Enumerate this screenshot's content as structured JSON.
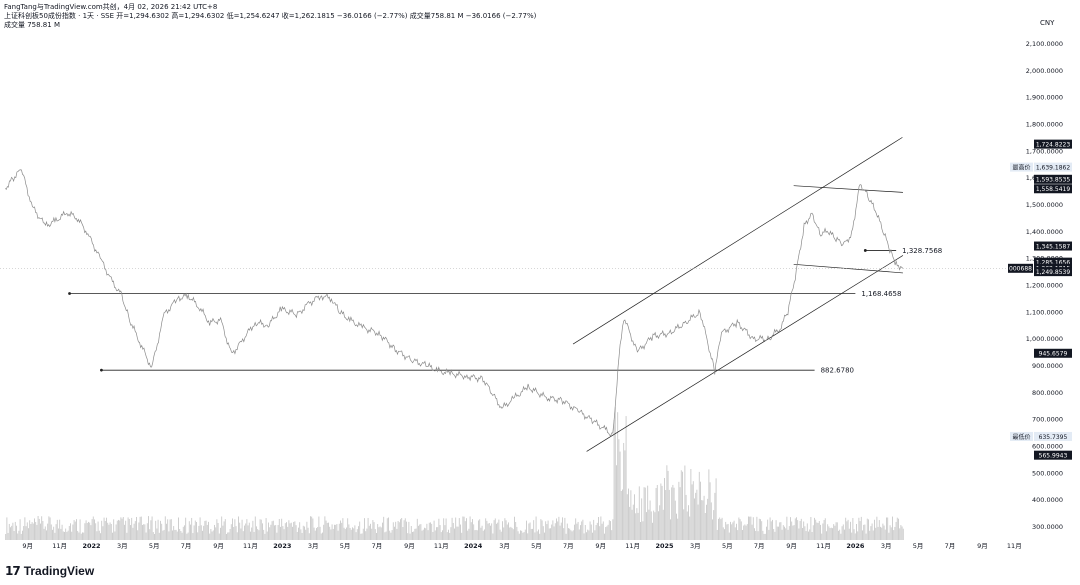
{
  "header": {
    "attribution": "FangTang与TradingView.com共创，4月 02, 2026 21:42 UTC+8",
    "symbol_line": "上证科创板50成份指数 · 1天 · SSE  开=1,294.6302  高=1,294.6302  低=1,254.6247  收=1,262.1815  −36.0166 (−2.77%)  成交量758.81 M  −36.0166 (−2.77%)",
    "volume_line": "成交量  758.81 M"
  },
  "currency": "CNY",
  "brand": {
    "mark": "17",
    "name": "TradingView"
  },
  "colors": {
    "price_line": "#8a8a8a",
    "volume": "#c9c9c9",
    "trendline": "#222222",
    "label_bg": "#131722",
    "hi_lo_bg": "#e3ebf5",
    "axis_text": "#131722"
  },
  "chart_data": {
    "type": "line",
    "title": "上证科创板50成份指数",
    "ylim": [
      250,
      2150
    ],
    "y_axis_ticks": [
      {
        "label": "2,100.0000",
        "value": 2100
      },
      {
        "label": "2,000.0000",
        "value": 2000
      },
      {
        "label": "1,900.0000",
        "value": 1900
      },
      {
        "label": "1,800.0000",
        "value": 1800
      },
      {
        "label": "1,700.0000",
        "value": 1700
      },
      {
        "label": "1,600.0000",
        "value": 1600
      },
      {
        "label": "1,500.0000",
        "value": 1500
      },
      {
        "label": "1,400.0000",
        "value": 1400
      },
      {
        "label": "1,300.0000",
        "value": 1300
      },
      {
        "label": "1,200.0000",
        "value": 1200
      },
      {
        "label": "1,100.0000",
        "value": 1100
      },
      {
        "label": "1,000.0000",
        "value": 1000
      },
      {
        "label": "900.0000",
        "value": 900
      },
      {
        "label": "800.0000",
        "value": 800
      },
      {
        "label": "700.0000",
        "value": 700
      },
      {
        "label": "600.0000",
        "value": 600
      },
      {
        "label": "500.0000",
        "value": 500
      },
      {
        "label": "400.0000",
        "value": 400
      },
      {
        "label": "300.0000",
        "value": 300
      }
    ],
    "x_axis_ticks": [
      {
        "label": "9月",
        "x": "2021-09-01"
      },
      {
        "label": "11月",
        "x": "2021-11-01"
      },
      {
        "label": "2022",
        "x": "2022-01-01"
      },
      {
        "label": "3月",
        "x": "2022-03-01"
      },
      {
        "label": "5月",
        "x": "2022-05-01"
      },
      {
        "label": "7月",
        "x": "2022-07-01"
      },
      {
        "label": "9月",
        "x": "2022-09-01"
      },
      {
        "label": "11月",
        "x": "2022-11-01"
      },
      {
        "label": "2023",
        "x": "2023-01-01"
      },
      {
        "label": "3月",
        "x": "2023-03-01"
      },
      {
        "label": "5月",
        "x": "2023-05-01"
      },
      {
        "label": "7月",
        "x": "2023-07-01"
      },
      {
        "label": "9月",
        "x": "2023-09-01"
      },
      {
        "label": "11月",
        "x": "2023-11-01"
      },
      {
        "label": "2024",
        "x": "2024-01-01"
      },
      {
        "label": "3月",
        "x": "2024-03-01"
      },
      {
        "label": "5月",
        "x": "2024-05-01"
      },
      {
        "label": "7月",
        "x": "2024-07-01"
      },
      {
        "label": "9月",
        "x": "2024-09-01"
      },
      {
        "label": "11月",
        "x": "2024-11-01"
      },
      {
        "label": "2025",
        "x": "2025-01-01"
      },
      {
        "label": "3月",
        "x": "2025-03-01"
      },
      {
        "label": "5月",
        "x": "2025-05-01"
      },
      {
        "label": "7月",
        "x": "2025-07-01"
      },
      {
        "label": "9月",
        "x": "2025-09-01"
      },
      {
        "label": "11月",
        "x": "2025-11-01"
      },
      {
        "label": "2026",
        "x": "2026-01-01"
      },
      {
        "label": "3月",
        "x": "2026-03-01"
      },
      {
        "label": "5月",
        "x": "2026-05-01"
      },
      {
        "label": "7月",
        "x": "2026-07-01"
      },
      {
        "label": "9月",
        "x": "2026-09-01"
      },
      {
        "label": "11月",
        "x": "2026-11-01"
      }
    ],
    "price_series": {
      "name": "",
      "x": [
        "2021-07-20",
        "2021-08-05",
        "2021-08-20",
        "2021-09-10",
        "2021-10-05",
        "2021-10-25",
        "2021-11-15",
        "2021-12-05",
        "2021-12-25",
        "2022-01-20",
        "2022-02-10",
        "2022-02-28",
        "2022-03-15",
        "2022-04-05",
        "2022-04-26",
        "2022-05-20",
        "2022-06-15",
        "2022-07-05",
        "2022-07-25",
        "2022-08-15",
        "2022-09-05",
        "2022-09-26",
        "2022-10-15",
        "2022-11-10",
        "2022-12-05",
        "2022-12-30",
        "2023-01-30",
        "2023-02-20",
        "2023-03-15",
        "2023-04-05",
        "2023-04-20",
        "2023-05-10",
        "2023-06-05",
        "2023-07-05",
        "2023-08-05",
        "2023-09-05",
        "2023-10-05",
        "2023-10-25",
        "2023-11-20",
        "2023-12-20",
        "2024-01-20",
        "2024-02-05",
        "2024-02-25",
        "2024-03-20",
        "2024-04-15",
        "2024-05-20",
        "2024-06-20",
        "2024-07-20",
        "2024-08-20",
        "2024-09-10",
        "2024-09-24",
        "2024-10-08",
        "2024-10-15",
        "2024-11-10",
        "2024-12-10",
        "2025-01-10",
        "2025-02-10",
        "2025-03-10",
        "2025-04-07",
        "2025-04-20",
        "2025-05-20",
        "2025-06-20",
        "2025-07-20",
        "2025-08-10",
        "2025-08-25",
        "2025-09-10",
        "2025-09-25",
        "2025-10-10",
        "2025-10-25",
        "2025-11-10",
        "2025-11-25",
        "2025-12-10",
        "2025-12-25",
        "2026-01-10",
        "2026-01-25",
        "2026-02-10",
        "2026-02-25",
        "2026-03-10",
        "2026-03-20",
        "2026-04-02"
      ],
      "y": [
        1560,
        1600,
        1630,
        1490,
        1420,
        1440,
        1470,
        1450,
        1390,
        1290,
        1210,
        1160,
        1070,
        980,
        890,
        1090,
        1150,
        1160,
        1120,
        1060,
        1070,
        940,
        990,
        1060,
        1050,
        1110,
        1090,
        1130,
        1160,
        1150,
        1100,
        1070,
        1040,
        1020,
        960,
        920,
        900,
        880,
        870,
        860,
        850,
        800,
        740,
        780,
        820,
        780,
        770,
        730,
        690,
        660,
        640,
        980,
        1080,
        950,
        1010,
        1020,
        1060,
        1100,
        880,
        1020,
        1060,
        1000,
        1000,
        1040,
        1100,
        1250,
        1420,
        1470,
        1390,
        1400,
        1370,
        1350,
        1390,
        1580,
        1530,
        1470,
        1390,
        1320,
        1280,
        1262.1815
      ]
    },
    "volume_series": {
      "name": "成交量",
      "unit": "M",
      "last": 758.81
    },
    "horizontal_levels": [
      {
        "value": 1168.4658,
        "label": "1,168.4658",
        "from": "2021-11-20",
        "to": "2026-01-01"
      },
      {
        "value": 882.678,
        "label": "882.6780",
        "from": "2022-01-20",
        "to": "2025-10-15"
      },
      {
        "value": 1328.7568,
        "label": "1,328.7568",
        "from": "2026-01-20",
        "to": "2026-03-20"
      }
    ],
    "channel_lines": [
      {
        "name": "upper-channel",
        "from": [
          "2024-07-10",
          980
        ],
        "to": [
          "2026-04-01",
          1750
        ]
      },
      {
        "name": "lower-channel",
        "from": [
          "2024-08-05",
          580
        ],
        "to": [
          "2026-04-02",
          1310
        ]
      },
      {
        "name": "top-band",
        "from": [
          "2025-09-05",
          1570
        ],
        "to": [
          "2026-04-02",
          1545
        ]
      },
      {
        "name": "bottom-band",
        "from": [
          "2025-09-05",
          1277
        ],
        "to": [
          "2026-04-02",
          1245
        ]
      }
    ],
    "price_axis_labels": [
      {
        "label": "1,724.8223",
        "value": 1724.8223,
        "style": "dark"
      },
      {
        "label": "最高价",
        "value": 1639.1862,
        "style": "light-tag"
      },
      {
        "label": "1,639.1862",
        "value": 1639.1862,
        "style": "light"
      },
      {
        "label": "1,593.8535",
        "value": 1593.8535,
        "style": "dark"
      },
      {
        "label": "1,558.5419",
        "value": 1558.5419,
        "style": "dark"
      },
      {
        "label": "1,345.1587",
        "value": 1345.1587,
        "style": "dark"
      },
      {
        "label": "1,285.1656",
        "value": 1285.1656,
        "style": "dark"
      },
      {
        "label": "000688",
        "value": 1262.1815,
        "style": "dark-tag"
      },
      {
        "label": "1,262.1815",
        "value": 1262.1815,
        "style": "dark"
      },
      {
        "label": "1,249.8539",
        "value": 1249.8539,
        "style": "dark"
      },
      {
        "label": "945.6579",
        "value": 945.6579,
        "style": "dark"
      },
      {
        "label": "最低价",
        "value": 635.7395,
        "style": "light-tag"
      },
      {
        "label": "635.7395",
        "value": 635.7395,
        "style": "light"
      },
      {
        "label": "565.9943",
        "value": 565.9943,
        "style": "dark"
      }
    ]
  }
}
